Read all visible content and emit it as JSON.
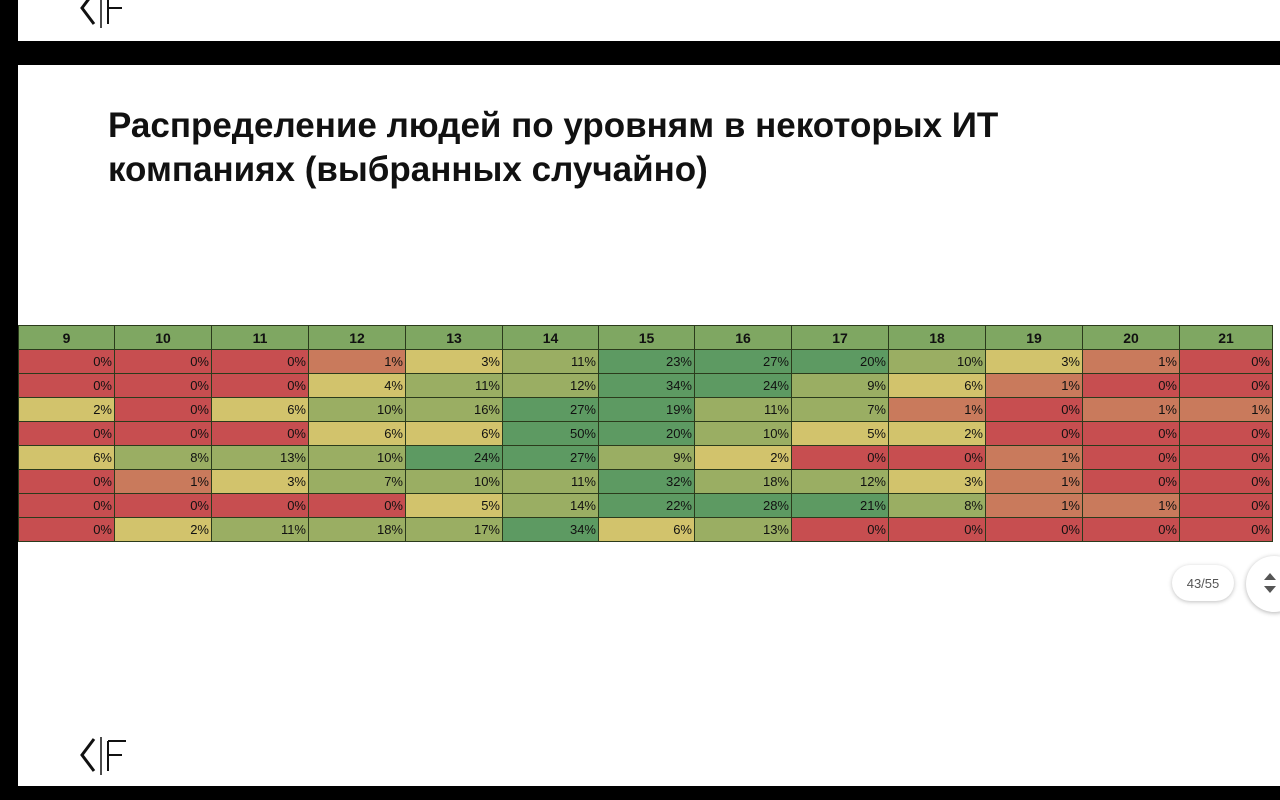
{
  "slide": {
    "title": "Распределение людей по уровням в некоторых ИТ компаниях (выбранных случайно)",
    "logo_icon": "kf-logo-icon"
  },
  "table": {
    "headers": [
      "9",
      "10",
      "11",
      "12",
      "13",
      "14",
      "15",
      "16",
      "17",
      "18",
      "19",
      "20",
      "21"
    ],
    "rows": [
      [
        "0%",
        "0%",
        "0%",
        "1%",
        "3%",
        "11%",
        "23%",
        "27%",
        "20%",
        "10%",
        "3%",
        "1%",
        "0%"
      ],
      [
        "0%",
        "0%",
        "0%",
        "4%",
        "11%",
        "12%",
        "34%",
        "24%",
        "9%",
        "6%",
        "1%",
        "0%",
        "0%"
      ],
      [
        "2%",
        "0%",
        "6%",
        "10%",
        "16%",
        "27%",
        "19%",
        "11%",
        "7%",
        "1%",
        "0%",
        "1%",
        "1%"
      ],
      [
        "0%",
        "0%",
        "0%",
        "6%",
        "6%",
        "50%",
        "20%",
        "10%",
        "5%",
        "2%",
        "0%",
        "0%",
        "0%"
      ],
      [
        "6%",
        "8%",
        "13%",
        "10%",
        "24%",
        "27%",
        "9%",
        "2%",
        "0%",
        "0%",
        "1%",
        "0%",
        "0%"
      ],
      [
        "0%",
        "1%",
        "3%",
        "7%",
        "10%",
        "11%",
        "32%",
        "18%",
        "12%",
        "3%",
        "1%",
        "0%",
        "0%"
      ],
      [
        "0%",
        "0%",
        "0%",
        "0%",
        "5%",
        "14%",
        "22%",
        "28%",
        "21%",
        "8%",
        "1%",
        "1%",
        "0%"
      ],
      [
        "0%",
        "2%",
        "11%",
        "18%",
        "17%",
        "34%",
        "6%",
        "13%",
        "0%",
        "0%",
        "0%",
        "0%",
        "0%"
      ]
    ],
    "colors": {
      "header": "#7fa762",
      "low": "#c74e50",
      "lowish": "#c97a5c",
      "mid": "#d2c36c",
      "midhigh": "#9aae63",
      "high": "#5d9a62"
    }
  },
  "pager": {
    "label": "43/55",
    "nav_icon": "updown-arrows-icon"
  }
}
